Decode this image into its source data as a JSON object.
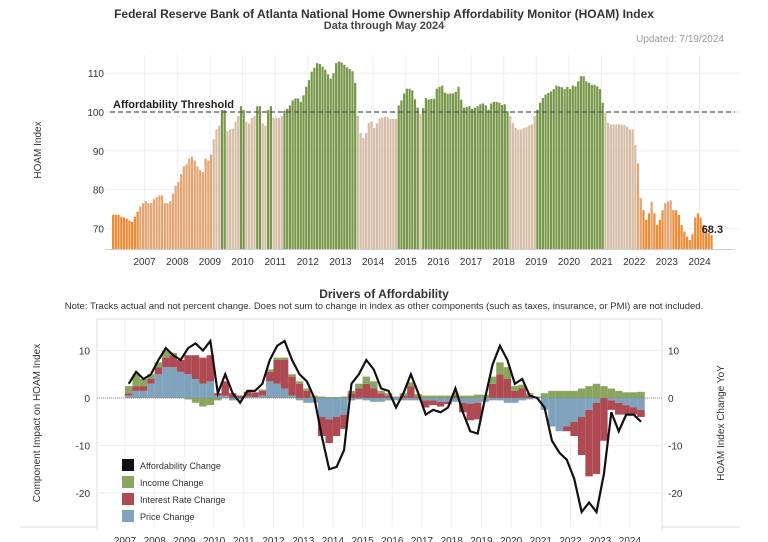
{
  "header": {
    "title": "Federal Reserve Bank of Atlanta National Home Ownership Affordability Monitor (HOAM) Index",
    "subtitle": "Data through May 2024",
    "updated": "Updated: 7/19/2024"
  },
  "chart_data": [
    {
      "type": "bar",
      "ylabel": "HOAM Index",
      "start_month": "2006-01",
      "frequency": "monthly",
      "yticks": [
        70,
        80,
        90,
        100,
        110
      ],
      "xticks": [
        "2007",
        "2008",
        "2009",
        "2010",
        "2011",
        "2012",
        "2013",
        "2014",
        "2015",
        "2016",
        "2017",
        "2018",
        "2019",
        "2020",
        "2021",
        "2022",
        "2023",
        "2024"
      ],
      "threshold": {
        "value": 100,
        "label": "Affordability Threshold"
      },
      "last_label": "68.3",
      "colors": {
        "above_100": "#77984a",
        "90_100": "#d6bea6",
        "75_90": "#e3a673",
        "below_75": "#ef8a35",
        "threshold": "#555555"
      },
      "values": [
        73.5,
        73.5,
        73.5,
        73,
        72.8,
        72.5,
        72,
        71.7,
        73,
        74.3,
        75.6,
        76.5,
        77,
        76.5,
        76.5,
        77.5,
        78,
        78.5,
        78.5,
        76.5,
        76.5,
        77,
        79,
        81,
        82,
        84,
        86,
        86.5,
        88,
        88.5,
        87.5,
        86,
        85,
        84.5,
        88,
        87.5,
        89,
        93,
        95.5,
        96.5,
        100.5,
        100.5,
        95,
        95.5,
        95.7,
        97.5,
        99,
        101.5,
        100.5,
        97.5,
        97,
        98.5,
        99,
        101.5,
        101.5,
        97,
        96.5,
        100.5,
        101.5,
        98.5,
        98.5,
        98.5,
        99,
        100.4,
        100.8,
        101.7,
        103,
        103.5,
        103.5,
        102.6,
        104.3,
        106.5,
        108.2,
        110.4,
        111.4,
        112.6,
        112.4,
        111.7,
        110.9,
        109.7,
        108.6,
        110,
        112.6,
        113,
        112.8,
        112.2,
        111.5,
        111.1,
        110.5,
        107.5,
        99,
        94.6,
        93.3,
        94.6,
        97.2,
        97.6,
        95.9,
        97,
        98.3,
        98.6,
        98.8,
        98.6,
        98.2,
        98.2,
        98.2,
        101.7,
        103,
        104.8,
        106,
        106,
        105.6,
        103.3,
        101.1,
        99.5,
        101,
        103.6,
        103.2,
        103.4,
        103.4,
        106,
        106.5,
        106.8,
        105,
        104.7,
        104.8,
        104.8,
        105.2,
        106.5,
        103.2,
        101.1,
        101.3,
        101.5,
        100.8,
        101.1,
        101.5,
        102,
        102.2,
        101.7,
        100.6,
        102.2,
        102.6,
        102.6,
        102.4,
        101.8,
        102,
        100.2,
        99,
        97.2,
        95.9,
        95.5,
        95.5,
        95.9,
        96.1,
        96.6,
        96.8,
        99,
        100.6,
        102.4,
        103.6,
        104.5,
        104.9,
        105.3,
        105.9,
        106.8,
        106.6,
        106.4,
        105.9,
        106.5,
        105.9,
        106.8,
        106.6,
        107.9,
        109.2,
        109.2,
        107.9,
        107.5,
        107,
        107,
        106.6,
        105.9,
        102.4,
        99.8,
        97.2,
        96.8,
        96.8,
        96.8,
        96.8,
        96.8,
        96.6,
        96.2,
        95.5,
        95.5,
        91.5,
        86.8,
        77.8,
        74.7,
        72.2,
        73.9,
        76.9,
        73.9,
        70.9,
        72.2,
        74.7,
        76.5,
        76.9,
        77.2,
        74.7,
        74.7,
        73.5,
        70.9,
        69.2,
        67.9,
        67,
        68.5,
        72.8,
        73.9,
        72.8,
        70.9,
        69.2,
        68.8,
        68.3
      ]
    },
    {
      "type": "bar",
      "title": "Drivers of Affordability",
      "note": "Note: Tracks actual and not percent change. Does not sum to change in index as other components (such as taxes, insurance, or PMI) are not included.",
      "ylabel": "Component Impact on HOAM Index",
      "ylabel_right": "HOAM Index Change YoY",
      "start_quarter": "2007-Q1",
      "frequency": "quarterly",
      "yticks": [
        10,
        0,
        -10,
        -20
      ],
      "ylim": [
        -27,
        16
      ],
      "xticks": [
        "2007",
        "2008",
        "2009",
        "2010",
        "2011",
        "2012",
        "2013",
        "2014",
        "2015",
        "2016",
        "2017",
        "2018",
        "2019",
        "2020",
        "2021",
        "2022",
        "2023",
        "2024"
      ],
      "legend_position": "bottom-left",
      "series": [
        {
          "name": "Affordability Change",
          "kind": "line",
          "color": "#111111",
          "values": [
            3,
            5.5,
            4,
            5,
            8,
            10.5,
            9,
            8,
            10.5,
            11.5,
            10,
            12,
            1,
            5,
            1,
            -1,
            1.5,
            1.5,
            3,
            8,
            11,
            12,
            8,
            5,
            3.5,
            0,
            -8,
            -15,
            -14.5,
            -11,
            3,
            5,
            8,
            6,
            2,
            1.5,
            -2,
            1,
            5,
            1,
            -3.5,
            -2.5,
            -3,
            -2,
            2,
            -3,
            -7,
            -7.5,
            0,
            7,
            11,
            8,
            3,
            4,
            0.5,
            0,
            -2,
            -9,
            -11.5,
            -13,
            -17,
            -24,
            -22,
            -24,
            -16,
            -3,
            -7,
            -3.5,
            -3.5,
            -5
          ]
        },
        {
          "name": "Income Change",
          "kind": "bar",
          "color": "#8aa55e",
          "values": [
            1.5,
            2.5,
            1.5,
            1,
            1,
            1.5,
            0.5,
            0,
            -0.3,
            -1,
            -1.8,
            -1.5,
            -0.5,
            0,
            0,
            0,
            0,
            0,
            0.3,
            0.5,
            0.5,
            0.5,
            0.5,
            0.5,
            0.5,
            0.5,
            0.3,
            0.2,
            0.2,
            0.3,
            0.5,
            1,
            1.5,
            1.5,
            0.5,
            0.5,
            0.3,
            0.5,
            0.8,
            0.5,
            0.5,
            0.5,
            0.5,
            0.5,
            0.5,
            0.5,
            0.5,
            0.7,
            0.7,
            1.5,
            2.5,
            2.5,
            1,
            0.8,
            0.5,
            0.3,
            1,
            1.5,
            1.5,
            1.5,
            1.5,
            2,
            2.5,
            3,
            2.5,
            2,
            1.5,
            1.2,
            1.2,
            1.3
          ]
        },
        {
          "name": "Interest Rate Change",
          "kind": "bar",
          "color": "#b04a52",
          "values": [
            0.5,
            1,
            1,
            1,
            1.5,
            2,
            2.5,
            2.5,
            4,
            5,
            5.5,
            5.5,
            0.5,
            3,
            1,
            0.5,
            1,
            1,
            1,
            2,
            5,
            6,
            4,
            3,
            1.5,
            0,
            -4,
            -5,
            -4,
            -3,
            1,
            2,
            3,
            2,
            1,
            0.5,
            0,
            0.5,
            2.5,
            0.3,
            -1.5,
            -1,
            -1,
            -0.5,
            0.5,
            -2,
            -3.5,
            -3.5,
            0,
            3,
            5,
            4,
            1.5,
            2,
            0.5,
            0,
            0,
            0,
            0,
            -1,
            -3,
            -8,
            -14,
            -15,
            -9,
            -2,
            -2.5,
            -2,
            -1.5,
            -1.5
          ]
        },
        {
          "name": "Price Change",
          "kind": "bar",
          "color": "#7fa3bd",
          "values": [
            0.5,
            1.5,
            1.5,
            3,
            5,
            6.5,
            6.5,
            5.5,
            5,
            4,
            3,
            3.5,
            0.5,
            0.5,
            -0.5,
            -0.3,
            0.3,
            0.2,
            0.5,
            3.5,
            3,
            2,
            0.5,
            -0.5,
            -1,
            -1,
            -4,
            -4.5,
            -4,
            -3.5,
            -0.5,
            -0.3,
            -0.5,
            -0.8,
            -0.8,
            -0.5,
            -0.5,
            -0.5,
            -0.5,
            -0.5,
            -0.5,
            -0.5,
            -0.8,
            -0.8,
            -0.8,
            -1,
            -1.2,
            -1,
            -0.8,
            -0.5,
            -0.5,
            -1,
            -1,
            -0.5,
            -0.3,
            0,
            -2.5,
            -6,
            -7,
            -6,
            -5,
            -4,
            -2.5,
            -1,
            0,
            -0.5,
            -1,
            -1.5,
            -2,
            -2.5
          ]
        }
      ]
    }
  ]
}
